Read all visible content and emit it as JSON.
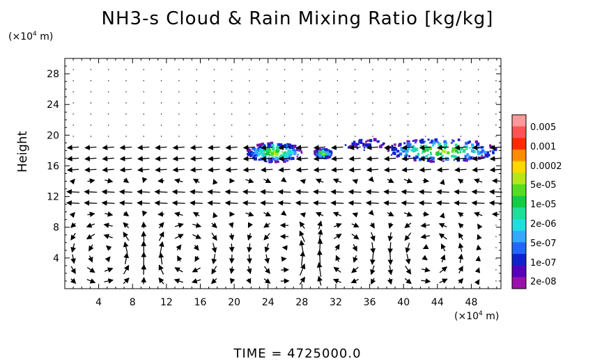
{
  "chart_data": {
    "type": "heatmap",
    "title": "NH3-s Cloud & Rain Mixing Ratio [kg/kg]",
    "ylabel": "Height",
    "yunit": "(×10⁴ m)",
    "xunit": "(×10⁴ m)",
    "xlim": [
      0,
      51.5
    ],
    "ylim": [
      0,
      30
    ],
    "xticks": [
      "4",
      "8",
      "12",
      "16",
      "20",
      "24",
      "28",
      "32",
      "36",
      "40",
      "44",
      "48"
    ],
    "xtick_values": [
      4,
      8,
      12,
      16,
      20,
      24,
      28,
      32,
      36,
      40,
      44,
      48
    ],
    "yticks": [
      "4",
      "8",
      "12",
      "16",
      "20",
      "24",
      "28"
    ],
    "ytick_values": [
      4,
      8,
      12,
      16,
      20,
      24,
      28
    ],
    "colorbar_labels": [
      "0.005",
      "0.001",
      "0.0002",
      "5e-05",
      "1e-05",
      "2e-06",
      "5e-07",
      "1e-07",
      "2e-08"
    ],
    "colorbar_colors": [
      "#ff9999",
      "#ff5555",
      "#ff2a00",
      "#ff8c00",
      "#ffd700",
      "#b5e61d",
      "#55dd22",
      "#11cc44",
      "#22dd99",
      "#22dddd",
      "#33aaff",
      "#2266ff",
      "#1122cc",
      "#5500bb",
      "#9911aa"
    ],
    "cloud_regions": [
      {
        "x_range": [
          21.5,
          28
        ],
        "y_range": [
          16.5,
          19
        ],
        "peak": "5e-05"
      },
      {
        "x_range": [
          29.5,
          31.5
        ],
        "y_range": [
          17,
          18.2
        ],
        "peak": "5e-05"
      },
      {
        "x_range": [
          33,
          38
        ],
        "y_range": [
          18,
          19.5
        ],
        "peak": "1e-07"
      },
      {
        "x_range": [
          38,
          51
        ],
        "y_range": [
          16.5,
          19.5
        ],
        "peak": "5e-05"
      }
    ],
    "grid": false
  },
  "time_label": "TIME  =  4725000.0"
}
